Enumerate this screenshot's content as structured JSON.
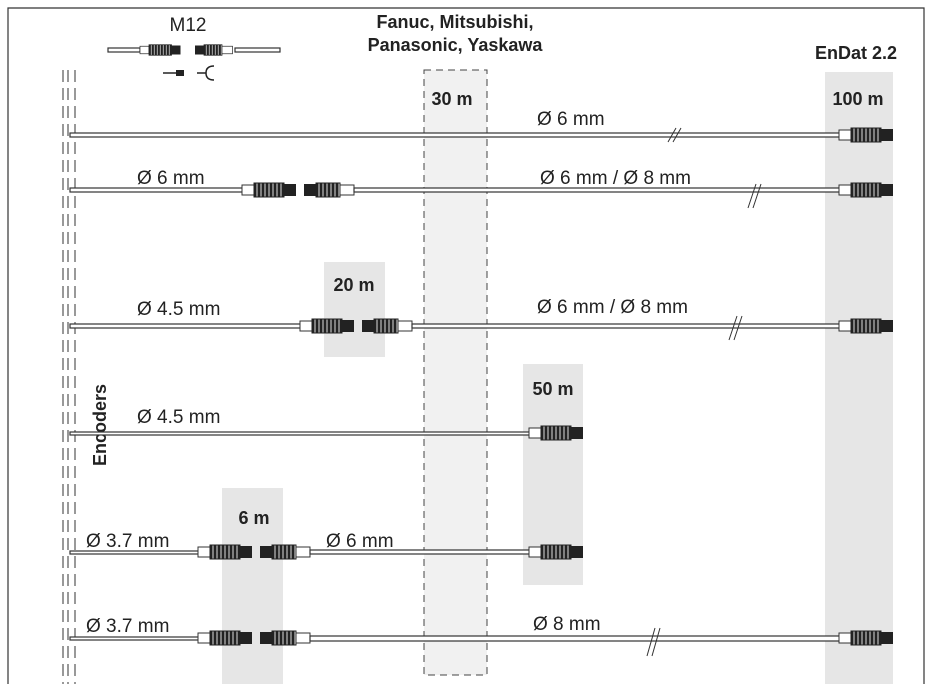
{
  "header": {
    "connector": "M12",
    "group_title": [
      "Fanuc, Mitsubishi,",
      "Panasonic, Yaskawa"
    ],
    "endat": "EnDat 2.2"
  },
  "side_label": "Encoders",
  "zones": [
    "30 m",
    "100 m",
    "20 m",
    "50 m",
    "6 m"
  ],
  "rows": [
    {
      "labels": [
        "Ø 6 mm"
      ]
    },
    {
      "labels": [
        "Ø 6 mm",
        "Ø 6 mm / Ø 8 mm"
      ]
    },
    {
      "labels": [
        "Ø 4.5 mm",
        "Ø 6 mm / Ø 8 mm"
      ]
    },
    {
      "labels": [
        "Ø 4.5 mm"
      ]
    },
    {
      "labels": [
        "Ø 3.7 mm",
        "Ø 6 mm"
      ]
    },
    {
      "labels": [
        "Ø 3.7 mm",
        "Ø 8 mm"
      ]
    }
  ]
}
